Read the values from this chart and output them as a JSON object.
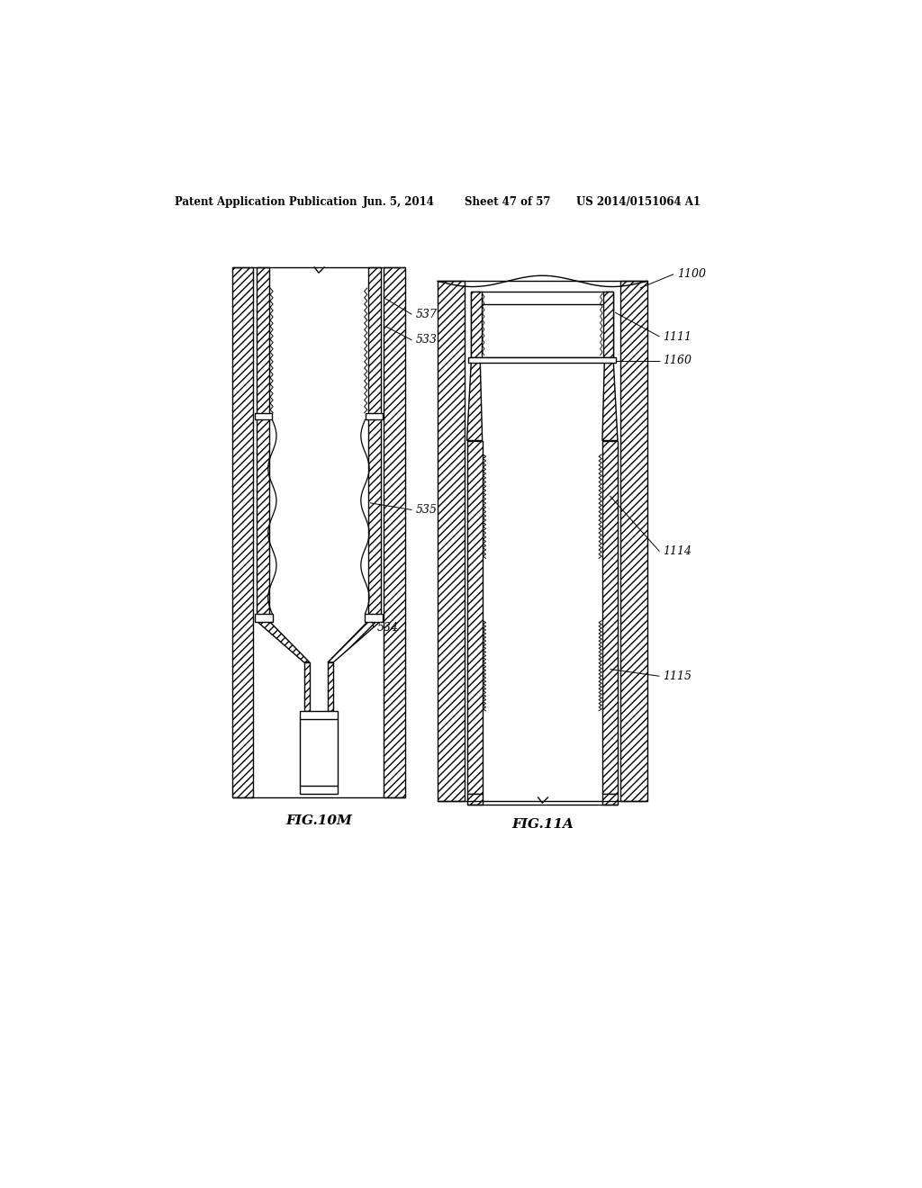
{
  "bg_color": "#ffffff",
  "header_text": "Patent Application Publication",
  "header_date": "Jun. 5, 2014",
  "header_sheet": "Sheet 47 of 57",
  "header_patent": "US 2014/0151064 A1",
  "fig1_label": "FIG.10M",
  "fig2_label": "FIG.11A",
  "line_color": "#000000",
  "lw": 1.0
}
